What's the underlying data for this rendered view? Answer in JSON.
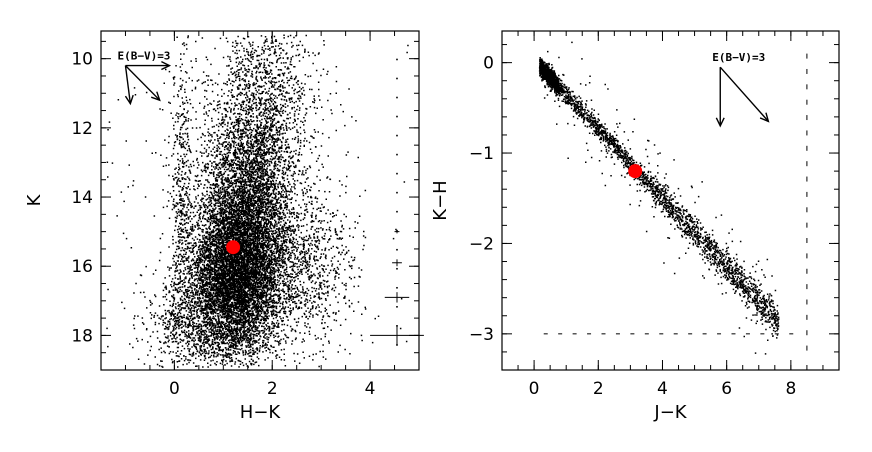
{
  "chart_data": [
    {
      "type": "scatter",
      "xlabel": "H−K",
      "ylabel": "K",
      "xlim": [
        -1.5,
        5.0
      ],
      "ylim": [
        19.0,
        9.2
      ],
      "y_inverted": true,
      "xticks": [
        0,
        2,
        4
      ],
      "xtick_labels": [
        "0",
        "2",
        "4"
      ],
      "yticks": [
        10,
        12,
        14,
        16,
        18
      ],
      "ytick_labels": [
        "10",
        "12",
        "14",
        "16",
        "18"
      ],
      "grid": false,
      "highlight_point": {
        "x": 1.2,
        "y": 15.45,
        "color": "#ff0000"
      },
      "reddening_vector": {
        "label": "E(B−V)=3",
        "origin": [
          -1.0,
          10.2
        ],
        "arrows": [
          [
            -0.9,
            11.3
          ],
          [
            -0.3,
            11.2
          ],
          [
            -0.1,
            10.2
          ]
        ]
      },
      "error_bars": [
        {
          "x": 4.55,
          "y": 15.0,
          "xerr": 0.05,
          "yerr": 0.05
        },
        {
          "x": 4.55,
          "y": 15.9,
          "xerr": 0.1,
          "yerr": 0.1
        },
        {
          "x": 4.55,
          "y": 16.9,
          "xerr": 0.25,
          "yerr": 0.15
        },
        {
          "x": 4.55,
          "y": 18.0,
          "xerr": 0.55,
          "yerr": 0.3
        }
      ],
      "clusters": [
        {
          "n": 6000,
          "cx": 1.2,
          "cy": 16.3,
          "sx": 0.45,
          "sy": 1.2
        },
        {
          "n": 3000,
          "cx": 1.5,
          "cy": 14.5,
          "sx": 0.45,
          "sy": 1.4
        },
        {
          "n": 1500,
          "cx": 1.7,
          "cy": 12.5,
          "sx": 0.5,
          "sy": 1.4
        },
        {
          "n": 500,
          "cx": 1.9,
          "cy": 10.5,
          "sx": 0.55,
          "sy": 0.9
        },
        {
          "n": 1500,
          "cx": 2.3,
          "cy": 16.0,
          "sx": 0.7,
          "sy": 1.2
        },
        {
          "n": 700,
          "cx": 0.4,
          "cy": 17.6,
          "sx": 0.5,
          "sy": 0.7
        },
        {
          "n": 500,
          "cx": 0.15,
          "cy": 14.0,
          "sx": 0.12,
          "sy": 2.4
        },
        {
          "n": 250,
          "cx": 1.5,
          "cy": 14.0,
          "sx": 1.6,
          "sy": 2.8
        }
      ]
    },
    {
      "type": "scatter",
      "xlabel": "J−K",
      "ylabel": "K−H",
      "xlim": [
        -1.0,
        9.5
      ],
      "ylim": [
        -3.4,
        0.35
      ],
      "xticks": [
        0,
        2,
        4,
        6,
        8
      ],
      "xtick_labels": [
        "0",
        "2",
        "4",
        "6",
        "8"
      ],
      "yticks": [
        0,
        -1,
        -2,
        -3
      ],
      "ytick_labels": [
        "0",
        "−1",
        "−2",
        "−3"
      ],
      "grid": false,
      "highlight_point": {
        "x": 3.15,
        "y": -1.2,
        "color": "#ff0000"
      },
      "reddening_vector": {
        "label": "E(B−V)=3",
        "origin": [
          5.8,
          -0.05
        ],
        "arrows": [
          [
            5.8,
            -0.7
          ],
          [
            7.3,
            -0.65
          ]
        ]
      },
      "upper_limit_column_x": 8.5,
      "lower_limit_row_y": -3.0,
      "band": {
        "x0": 0.3,
        "y0": -0.09,
        "slope": -0.38,
        "x_range": [
          0.15,
          7.6
        ]
      },
      "scattered_points": 260
    }
  ]
}
